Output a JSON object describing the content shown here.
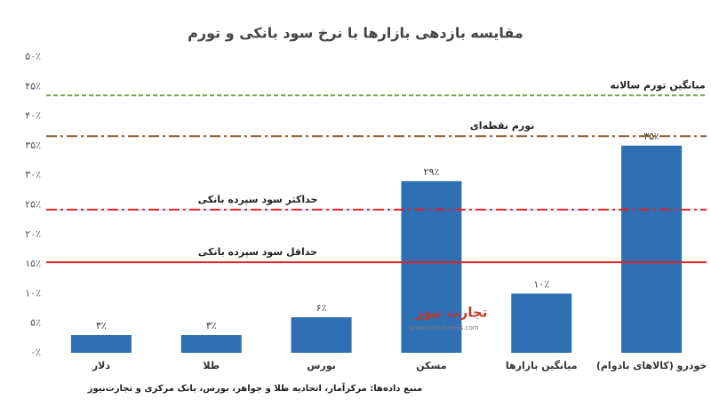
{
  "chart_data": {
    "type": "bar",
    "title": "مقایسه بازدهی بازارها با نرخ سود بانکی و تورم",
    "categories": [
      "دلار",
      "طلا",
      "بورس",
      "مسکن",
      "میانگین بازارها",
      "خودرو (کالاهای بادوام)"
    ],
    "values": [
      3,
      3,
      6,
      29,
      10,
      35
    ],
    "value_labels": [
      "۳٪",
      "۳٪",
      "۶٪",
      "۲۹٪",
      "۱۰٪",
      "۳۵٪"
    ],
    "color": "#2f6fb4",
    "ylim": [
      0,
      50
    ],
    "yticks": [
      {
        "value": 0,
        "label": "۰٪"
      },
      {
        "value": 5,
        "label": "۵٪"
      },
      {
        "value": 10,
        "label": "۱۰٪"
      },
      {
        "value": 15,
        "label": "۱۵٪"
      },
      {
        "value": 20,
        "label": "۲۰٪"
      },
      {
        "value": 25,
        "label": "۲۵٪"
      },
      {
        "value": 30,
        "label": "۳۰٪"
      },
      {
        "value": 35,
        "label": "۳۵٪"
      },
      {
        "value": 40,
        "label": "۴۰٪"
      },
      {
        "value": 45,
        "label": "۴۵٪"
      },
      {
        "value": 50,
        "label": "۵۰٪"
      }
    ],
    "grid": false,
    "reference_lines": [
      {
        "name": "میانگین تورم سالانه",
        "value": 43.5,
        "color": "#70ad47",
        "style": "dashed"
      },
      {
        "name": "تورم نقطه‌ای",
        "value": 36.6,
        "color": "#8b5a2b",
        "style": "dashdot"
      },
      {
        "name": "حداکثر سود سپرده بانکی",
        "value": 24.2,
        "color": "#e02424",
        "style": "dashdot"
      },
      {
        "name": "حداقل سود سپرده بانکی",
        "value": 15.3,
        "color": "#e02424",
        "style": "solid"
      }
    ],
    "source": "منبع داده‌ها: مرکزآمار، اتحادیه طلا و جواهر، بورس، بانک مرکزی و تجارت‌نیوز",
    "watermark": {
      "logo": "تجارت نیوز",
      "url": "www.tejaratnews.com"
    }
  }
}
